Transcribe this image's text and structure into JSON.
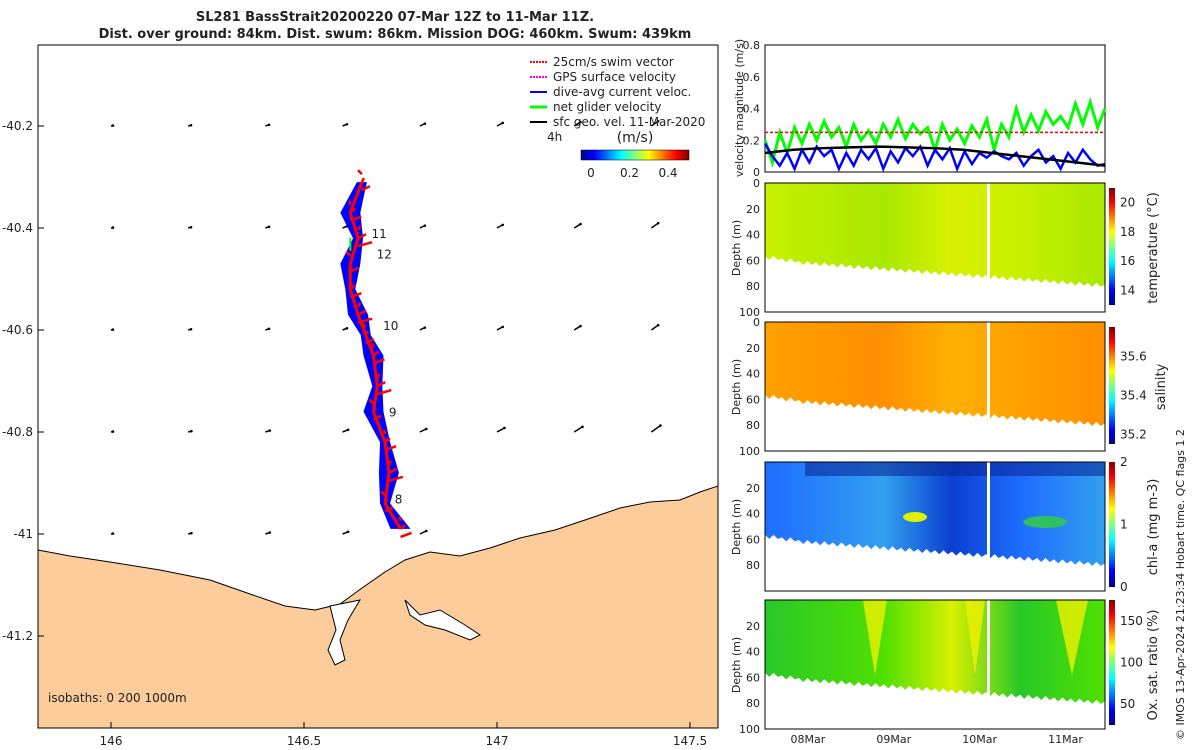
{
  "title": {
    "line1": "SL281 BassStrait20200220 07-Mar 12Z to 11-Mar 11Z.",
    "line2": "Dist. over ground: 84km. Dist. swum: 86km. Mission DOG: 460km. Swum: 439km"
  },
  "colors": {
    "land": "#fccc9a",
    "swim": "#ff0000",
    "gps": "#ff00ff",
    "current": "#0000ff",
    "net": "#00ff00",
    "geo": "#000000"
  },
  "chart_data": [
    {
      "type": "map",
      "name": "glider-track-map",
      "xticks": [
        "146",
        "146.5",
        "147",
        "147.5"
      ],
      "xtick_values": [
        146,
        146.5,
        147,
        147.5
      ],
      "yticks": [
        "-40.2",
        "-40.4",
        "-40.6",
        "-40.8",
        "-41",
        "-41.2"
      ],
      "ytick_values": [
        -40.2,
        -40.4,
        -40.6,
        -40.8,
        -41,
        -41.2
      ],
      "xlim": [
        145.81,
        147.57
      ],
      "ylim": [
        -41.37,
        -40.04
      ],
      "legend": [
        {
          "label": "25cm/s swim vector",
          "color": "#ff0000"
        },
        {
          "label": "GPS surface velocity",
          "color": "#ff00ff"
        },
        {
          "label": "dive-avg current veloc.",
          "color": "#0000ff"
        },
        {
          "label": "net glider velocity",
          "color": "#00ff00"
        },
        {
          "label": "sfc geo. vel. 11-Mar-2020",
          "color": "#000000"
        }
      ],
      "interval_label": "4h",
      "colorbar": {
        "label": "(m/s)",
        "ticks": [
          "0",
          "0.2",
          "0.4"
        ],
        "range": [
          0,
          0.5
        ]
      },
      "isobaths_label": "isobaths: 0   200   1000m",
      "track": [
        [
          146.65,
          -40.31
        ],
        [
          146.62,
          -40.37
        ],
        [
          146.64,
          -40.42
        ],
        [
          146.62,
          -40.47
        ],
        [
          146.62,
          -40.52
        ],
        [
          146.64,
          -40.57
        ],
        [
          146.66,
          -40.61
        ],
        [
          146.68,
          -40.65
        ],
        [
          146.69,
          -40.71
        ],
        [
          146.68,
          -40.76
        ],
        [
          146.71,
          -40.82
        ],
        [
          146.72,
          -40.88
        ],
        [
          146.71,
          -40.94
        ],
        [
          146.75,
          -40.99
        ]
      ],
      "day_labels": [
        {
          "text": "11",
          "lon": 146.675,
          "lat": -40.42
        },
        {
          "text": "12",
          "lon": 146.688,
          "lat": -40.46
        },
        {
          "text": "10",
          "lon": 146.705,
          "lat": -40.6
        },
        {
          "text": "9",
          "lon": 146.72,
          "lat": -40.77
        },
        {
          "text": "8",
          "lon": 146.735,
          "lat": -40.94
        }
      ],
      "geo_vectors_lons": [
        146,
        146.2,
        146.4,
        146.6,
        146.8,
        147,
        147.2,
        147.4
      ],
      "geo_vectors_lats": [
        -40.2,
        -40.4,
        -40.6,
        -40.8,
        -41.0
      ]
    },
    {
      "type": "line",
      "name": "velocity-magnitude",
      "ylabel": "velocity magnitude (m/s)",
      "yticks": [
        "0",
        "0.2",
        "0.4",
        "0.6",
        "0.8"
      ],
      "ylim": [
        0,
        0.8
      ],
      "xlim_days_from_07Mar12Z": [
        0,
        3.96
      ],
      "series": [
        {
          "name": "net glider velocity",
          "color": "#00ff00",
          "values": [
            0.2,
            0.06,
            0.25,
            0.12,
            0.28,
            0.18,
            0.3,
            0.2,
            0.32,
            0.22,
            0.28,
            0.16,
            0.3,
            0.2,
            0.26,
            0.18,
            0.3,
            0.22,
            0.33,
            0.21,
            0.3,
            0.24,
            0.28,
            0.14,
            0.3,
            0.2,
            0.27,
            0.18,
            0.29,
            0.22,
            0.33,
            0.14,
            0.3,
            0.22,
            0.4,
            0.25,
            0.36,
            0.26,
            0.38,
            0.3,
            0.35,
            0.28,
            0.43,
            0.3,
            0.44,
            0.28,
            0.4
          ]
        },
        {
          "name": "dive-avg current",
          "color": "#0000ff",
          "values": [
            0.18,
            0.1,
            0.04,
            0.12,
            0.02,
            0.14,
            0.06,
            0.16,
            0.1,
            0.14,
            0.02,
            0.12,
            0.04,
            0.14,
            0.08,
            0.15,
            0.02,
            0.13,
            0.06,
            0.15,
            0.1,
            0.16,
            0.04,
            0.14,
            0.08,
            0.15,
            0.02,
            0.13,
            0.05,
            0.12,
            0.09,
            0.13,
            0.1,
            0.08,
            0.12,
            0.04,
            0.1,
            0.14,
            0.06,
            0.1,
            0.02,
            0.12,
            0.06,
            0.14,
            0.08,
            0.04,
            0.05
          ]
        },
        {
          "name": "sfc geo. vel.",
          "color": "#000000",
          "values": [
            0.12,
            0.14,
            0.15,
            0.155,
            0.16,
            0.155,
            0.15,
            0.14,
            0.12,
            0.1,
            0.08,
            0.06,
            0.04
          ]
        },
        {
          "name": "25cm/s swim",
          "color": "#ff0000",
          "values": [
            0.25,
            0.25
          ]
        }
      ],
      "xticks": [
        "08Mar",
        "09Mar",
        "10Mar",
        "11Mar"
      ]
    },
    {
      "type": "heatmap",
      "name": "temperature",
      "ylabel": "Depth (m)",
      "cblabel": "temperature (°C)",
      "yticks": [
        "0",
        "20",
        "40",
        "60",
        "80",
        "100"
      ],
      "cbticks": [
        "14",
        "16",
        "18",
        "20"
      ],
      "cbrange": [
        13,
        21
      ]
    },
    {
      "type": "heatmap",
      "name": "salinity",
      "ylabel": "Depth (m)",
      "cblabel": "salinity",
      "yticks": [
        "0",
        "20",
        "40",
        "60",
        "80",
        "100"
      ],
      "cbticks": [
        "35.2",
        "35.4",
        "35.6"
      ],
      "cbrange": [
        35.15,
        35.75
      ]
    },
    {
      "type": "heatmap",
      "name": "chl-a",
      "ylabel": "Depth (m)",
      "cblabel": "chl-a (mg m-3)",
      "yticks": [
        "20",
        "40",
        "60",
        "80"
      ],
      "cbticks": [
        "0",
        "1",
        "2"
      ],
      "cbrange": [
        0,
        2
      ]
    },
    {
      "type": "heatmap",
      "name": "oxygen-saturation",
      "ylabel": "Depth (m)",
      "cblabel": "Ox. sat. ratio (%)",
      "yticks": [
        "20",
        "40",
        "60",
        "80",
        "100"
      ],
      "cbticks": [
        "50",
        "100",
        "150"
      ],
      "cbrange": [
        25,
        175
      ]
    }
  ],
  "credit": "© IMOS 13-Apr-2024 21:23:34 Hobart time. QC flags 1  2",
  "bottom_depth_profile": [
    58,
    60,
    62,
    63,
    64,
    65,
    66,
    67,
    68,
    69,
    70,
    71,
    72,
    73,
    74,
    75,
    76,
    77,
    78,
    79,
    80
  ]
}
